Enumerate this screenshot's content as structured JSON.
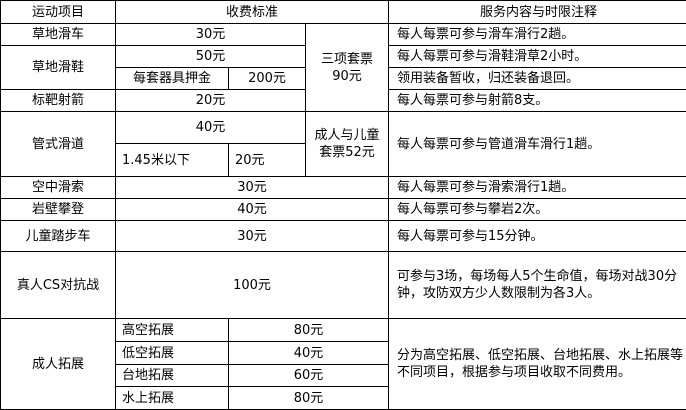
{
  "header": {
    "item": "运动项目",
    "fee": "收费标准",
    "note": "服务内容与时限注释"
  },
  "rows": {
    "grass_cart": {
      "name": "草地滑车",
      "fee": "30元",
      "note": "每人每票可参与滑车滑行2趟。"
    },
    "combo3": {
      "line1": "三项套票",
      "line2": "90元"
    },
    "grass_skate": {
      "name": "草地滑鞋",
      "fee": "50元",
      "note": "每人每票可参与滑鞋滑草2小时。",
      "deposit_label": "每套器具押金",
      "deposit": "200元",
      "deposit_note": "领用装备暂收，归还装备退回。"
    },
    "archery": {
      "name": "标靶射箭",
      "fee": "20元",
      "note": "每人每票可参与射箭8支。"
    },
    "slide": {
      "name": "管式滑道",
      "fee": "40元",
      "child_label": "1.45米以下",
      "child_fee": "20元",
      "combo": "成人与儿童套票52元",
      "note": "每人每票可参与管道滑车滑行1趟。"
    },
    "zipline": {
      "name": "空中滑索",
      "fee": "30元",
      "note": "每人每票可参与滑索滑行1趟。"
    },
    "climbing": {
      "name": "岩壁攀登",
      "fee": "40元",
      "note": "每人每票可参与攀岩2次。"
    },
    "kids_bike": {
      "name": "儿童踏步车",
      "fee": "30元",
      "note": "每人每票可参与15分钟。"
    },
    "cs": {
      "name": "真人CS对抗战",
      "fee": "100元",
      "note": "可参与3场，每场每人5个生命值，每场对战30分钟，攻防双方少人数限制为各3人。"
    },
    "expansion": {
      "name": "成人拓展",
      "items": [
        {
          "name": "高空拓展",
          "fee": "80元"
        },
        {
          "name": "低空拓展",
          "fee": "40元"
        },
        {
          "name": "台地拓展",
          "fee": "60元"
        },
        {
          "name": "水上拓展",
          "fee": "80元"
        }
      ],
      "note": "分为高空拓展、低空拓展、台地拓展、水上拓展等不同项目，根据参与项目收取不同费用。"
    }
  }
}
